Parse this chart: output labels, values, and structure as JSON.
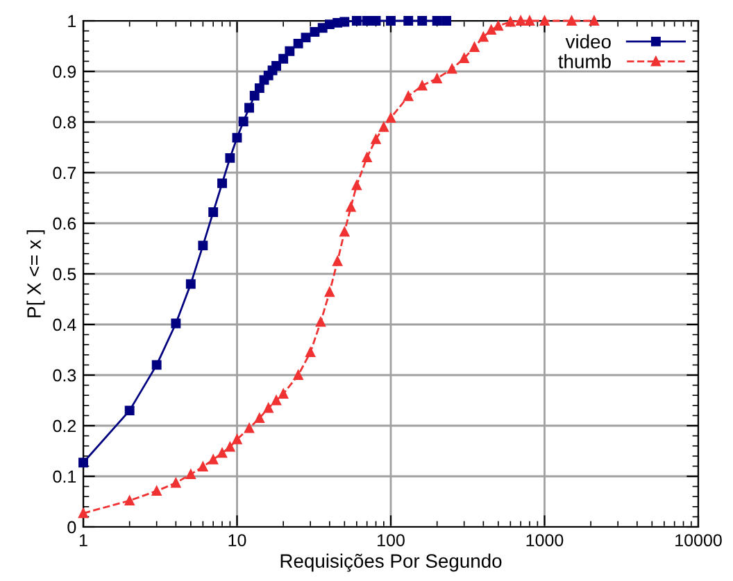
{
  "chart_data": {
    "type": "line",
    "xlabel": "Requisições Por Segundo",
    "ylabel": "P[ X <= x ]",
    "log": "x",
    "xlim": [
      1,
      10000
    ],
    "xticks": [
      1,
      10,
      100,
      1000,
      10000
    ],
    "ylim": [
      0,
      1
    ],
    "yticks": [
      0,
      0.1,
      0.2,
      0.3,
      0.4,
      0.5,
      0.6,
      0.7,
      0.8,
      0.9,
      1
    ],
    "grid": true,
    "legend": "top right",
    "series": [
      {
        "name": "video",
        "color": "#000080",
        "marker": "square",
        "line_style": "solid",
        "x": [
          1,
          2,
          3,
          4,
          5,
          6,
          7,
          8,
          9,
          10,
          11,
          12,
          13,
          14,
          15,
          16,
          17,
          18,
          20,
          22,
          25,
          28,
          32,
          36,
          40,
          45,
          50,
          60,
          70,
          80,
          100,
          130,
          160,
          200,
          230
        ],
        "values": [
          0.127,
          0.23,
          0.32,
          0.402,
          0.48,
          0.556,
          0.622,
          0.679,
          0.729,
          0.769,
          0.801,
          0.828,
          0.852,
          0.867,
          0.883,
          0.892,
          0.902,
          0.911,
          0.925,
          0.94,
          0.955,
          0.967,
          0.978,
          0.986,
          0.993,
          0.996,
          0.998,
          1.0,
          1.0,
          1.0,
          1.0,
          1.0,
          1.0,
          1.0,
          1.0
        ]
      },
      {
        "name": "thumb",
        "color": "#f03232",
        "marker": "triangle",
        "line_style": "dashed",
        "x": [
          1,
          2,
          3,
          4,
          5,
          6,
          7,
          8,
          9,
          10,
          12,
          14,
          16,
          18,
          20,
          25,
          30,
          35,
          40,
          45,
          50,
          55,
          60,
          70,
          80,
          90,
          100,
          130,
          160,
          200,
          250,
          300,
          350,
          400,
          450,
          500,
          600,
          700,
          800,
          1000,
          1500,
          2100
        ],
        "values": [
          0.027,
          0.052,
          0.071,
          0.087,
          0.104,
          0.119,
          0.133,
          0.146,
          0.158,
          0.173,
          0.195,
          0.215,
          0.235,
          0.25,
          0.263,
          0.3,
          0.345,
          0.405,
          0.464,
          0.525,
          0.583,
          0.632,
          0.675,
          0.73,
          0.766,
          0.79,
          0.808,
          0.851,
          0.872,
          0.886,
          0.905,
          0.926,
          0.948,
          0.968,
          0.982,
          0.99,
          0.998,
          1.0,
          1.0,
          1.0,
          1.0,
          1.0
        ]
      }
    ]
  }
}
